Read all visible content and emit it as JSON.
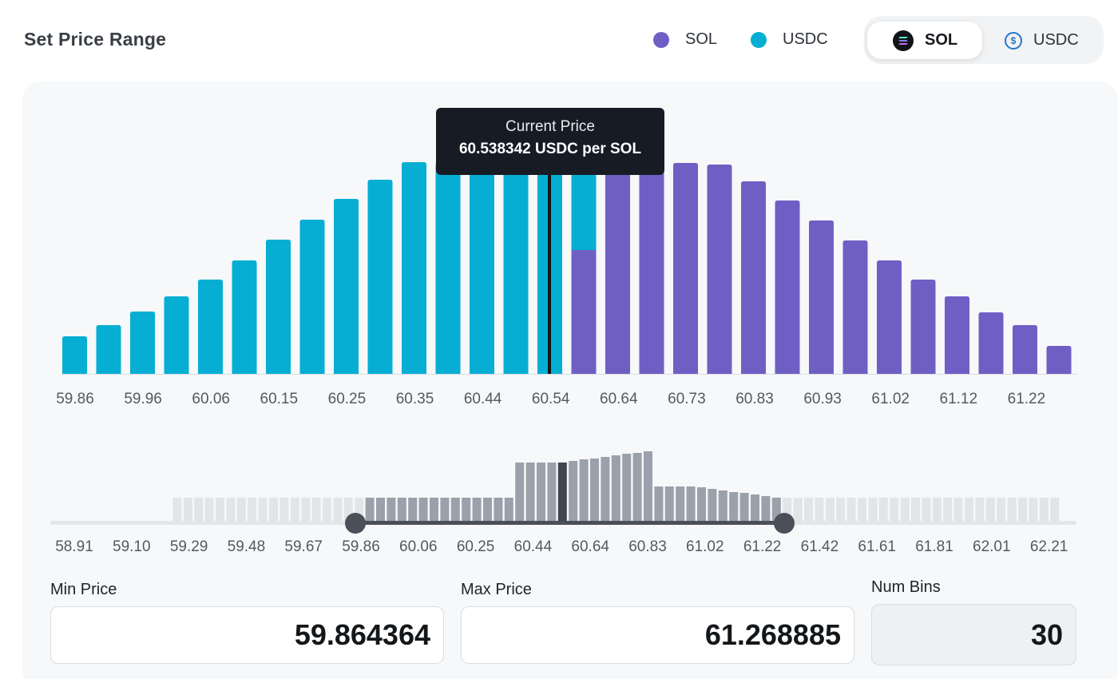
{
  "header": {
    "title": "Set Price Range"
  },
  "legend": [
    {
      "label": "SOL",
      "color": "#6f5fc4"
    },
    {
      "label": "USDC",
      "color": "#07aed3"
    }
  ],
  "token_toggle": {
    "options": [
      {
        "label": "SOL",
        "icon": "solana-icon",
        "active": true
      },
      {
        "label": "USDC",
        "icon": "usdc-icon",
        "active": false
      }
    ]
  },
  "tooltip": {
    "title": "Current Price",
    "value": "60.538342 USDC per SOL"
  },
  "chart_data": [
    {
      "type": "bar",
      "title": "",
      "xlabel": "",
      "ylabel": "",
      "current_price": 60.538342,
      "tick_labels": [
        "59.86",
        "59.96",
        "60.06",
        "60.15",
        "60.25",
        "60.35",
        "60.44",
        "60.54",
        "60.64",
        "60.73",
        "60.83",
        "60.93",
        "61.02",
        "61.12",
        "61.22"
      ],
      "series": [
        {
          "name": "USDC",
          "color": "#07aed3",
          "values": [
            47,
            61,
            78,
            97,
            118,
            142,
            168,
            193,
            219,
            243,
            265,
            265,
            265,
            265,
            265,
            155,
            0,
            0,
            0,
            0,
            0,
            0,
            0,
            0,
            0,
            0,
            0,
            0,
            0,
            0
          ]
        },
        {
          "name": "SOL",
          "color": "#6f5fc4",
          "values": [
            0,
            0,
            0,
            0,
            0,
            0,
            0,
            0,
            0,
            0,
            0,
            0,
            0,
            0,
            0,
            155,
            262,
            264,
            264,
            262,
            241,
            217,
            192,
            167,
            142,
            118,
            97,
            77,
            61,
            35
          ]
        }
      ]
    },
    {
      "type": "bar",
      "title": "",
      "tick_labels": [
        "58.91",
        "59.10",
        "59.29",
        "59.48",
        "59.67",
        "59.86",
        "60.06",
        "60.25",
        "60.44",
        "60.64",
        "60.83",
        "61.02",
        "61.22",
        "61.42",
        "61.61",
        "61.81",
        "62.01",
        "62.21"
      ],
      "values": [
        0,
        0,
        0,
        0,
        0,
        0,
        0,
        0,
        0,
        0,
        0,
        31,
        31,
        31,
        31,
        31,
        31,
        31,
        31,
        31,
        31,
        31,
        31,
        31,
        31,
        31,
        31,
        31,
        31,
        31,
        31,
        31,
        31,
        31,
        31,
        31,
        31,
        31,
        31,
        31,
        31,
        31,
        31,
        75,
        75,
        75,
        75,
        75,
        77,
        79,
        80,
        82,
        84,
        86,
        87,
        89,
        45,
        45,
        45,
        45,
        44,
        42,
        40,
        38,
        37,
        35,
        33,
        31,
        31,
        31,
        31,
        31,
        31,
        31,
        31,
        31,
        31,
        31,
        31,
        31,
        31,
        31,
        31,
        31,
        31,
        31,
        31,
        31,
        31,
        31,
        31,
        31,
        31,
        31
      ],
      "selected_range": [
        59.864364,
        61.268885
      ]
    }
  ],
  "inputs": {
    "min_price": {
      "label": "Min Price",
      "value": "59.864364"
    },
    "max_price": {
      "label": "Max Price",
      "value": "61.268885"
    },
    "num_bins": {
      "label": "Num Bins",
      "value": "30"
    }
  }
}
